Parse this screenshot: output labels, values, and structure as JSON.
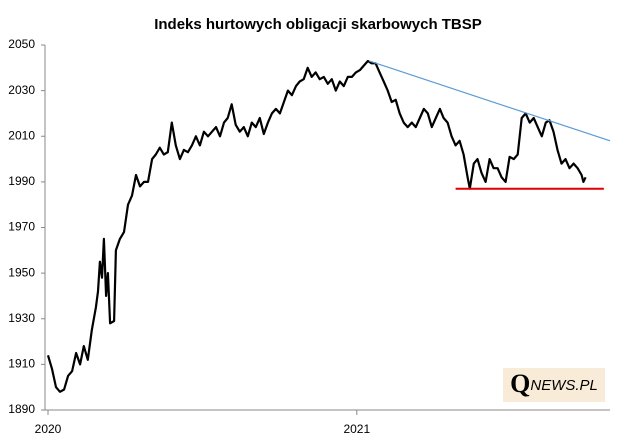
{
  "chart_data": {
    "type": "line",
    "title": "Indeks hurtowych obligacji skarbowych TBSP",
    "xlim": [
      2020,
      2021.82
    ],
    "xticks": [
      2020,
      2021
    ],
    "ylim": [
      1890,
      2050
    ],
    "yticks": [
      1890,
      1910,
      1930,
      1950,
      1970,
      1990,
      2010,
      2030,
      2050
    ],
    "series": [
      {
        "color": "#000000",
        "x": [
          2020.0,
          2020.013,
          2020.026,
          2020.039,
          2020.052,
          2020.065,
          2020.078,
          2020.091,
          2020.104,
          2020.116,
          2020.129,
          2020.142,
          2020.155,
          2020.162,
          2020.168,
          2020.175,
          2020.181,
          2020.188,
          2020.194,
          2020.201,
          2020.214,
          2020.22,
          2020.233,
          2020.246,
          2020.259,
          2020.272,
          2020.285,
          2020.298,
          2020.311,
          2020.324,
          2020.337,
          2020.349,
          2020.362,
          2020.375,
          2020.388,
          2020.401,
          2020.414,
          2020.427,
          2020.44,
          2020.453,
          2020.466,
          2020.479,
          2020.492,
          2020.505,
          2020.518,
          2020.531,
          2020.544,
          2020.557,
          2020.57,
          2020.582,
          2020.595,
          2020.608,
          2020.621,
          2020.634,
          2020.647,
          2020.66,
          2020.673,
          2020.686,
          2020.699,
          2020.712,
          2020.725,
          2020.738,
          2020.751,
          2020.764,
          2020.777,
          2020.79,
          2020.803,
          2020.815,
          2020.828,
          2020.841,
          2020.854,
          2020.867,
          2020.88,
          2020.893,
          2020.906,
          2020.919,
          2020.932,
          2020.945,
          2020.958,
          2020.971,
          2020.984,
          2020.997,
          2021.01,
          2021.023,
          2021.036,
          2021.048,
          2021.061,
          2021.074,
          2021.087,
          2021.1,
          2021.113,
          2021.126,
          2021.139,
          2021.152,
          2021.165,
          2021.178,
          2021.191,
          2021.204,
          2021.217,
          2021.23,
          2021.243,
          2021.256,
          2021.269,
          2021.281,
          2021.294,
          2021.307,
          2021.32,
          2021.333,
          2021.346,
          2021.359,
          2021.366,
          2021.379,
          2021.391,
          2021.404,
          2021.417,
          2021.43,
          2021.443,
          2021.456,
          2021.469,
          2021.482,
          2021.495,
          2021.508,
          2021.521,
          2021.534,
          2021.547,
          2021.56,
          2021.573,
          2021.586,
          2021.599,
          2021.612,
          2021.624,
          2021.637,
          2021.65,
          2021.663,
          2021.676,
          2021.689,
          2021.702,
          2021.715,
          2021.728,
          2021.734,
          2021.741
        ],
        "values": [
          1914,
          1908,
          1900,
          1898,
          1899,
          1905,
          1907,
          1915,
          1910,
          1918,
          1912,
          1925,
          1935,
          1942,
          1955,
          1948,
          1965,
          1940,
          1950,
          1928,
          1929,
          1960,
          1965,
          1968,
          1980,
          1984,
          1993,
          1988,
          1990,
          1990,
          2000,
          2002,
          2005,
          2002,
          2003,
          2016,
          2006,
          2000,
          2004,
          2003,
          2006,
          2010,
          2006,
          2012,
          2010,
          2012,
          2014,
          2010,
          2016,
          2018,
          2024,
          2015,
          2012,
          2014,
          2010,
          2016,
          2014,
          2018,
          2011,
          2016,
          2020,
          2022,
          2020,
          2025,
          2030,
          2028,
          2032,
          2034,
          2035,
          2040,
          2036,
          2038,
          2035,
          2036,
          2033,
          2035,
          2030,
          2034,
          2032,
          2036,
          2036,
          2038,
          2039,
          2041,
          2043,
          2042,
          2042,
          2038,
          2034,
          2030,
          2025,
          2026,
          2020,
          2016,
          2014,
          2016,
          2014,
          2018,
          2022,
          2020,
          2014,
          2018,
          2022,
          2018,
          2016,
          2010,
          2006,
          2008,
          2002,
          1992,
          1987,
          1998,
          2000,
          1994,
          1990,
          2000,
          1996,
          1996,
          1992,
          1990,
          2001,
          2000,
          2002,
          2018,
          2020,
          2016,
          2018,
          2014,
          2010,
          2016,
          2017,
          2012,
          2004,
          1998,
          2000,
          1996,
          1998,
          1996,
          1993,
          1990,
          1992
        ]
      }
    ],
    "trend_lines": [
      {
        "color": "#5b9bd5",
        "x": [
          2021.04,
          2021.82
        ],
        "y": [
          2043,
          2008
        ]
      },
      {
        "color": "#e00000",
        "x": [
          2021.32,
          2021.8
        ],
        "y": [
          1987,
          1987
        ]
      }
    ],
    "watermark": {
      "initial": "Q",
      "rest": "NEWS.PL"
    }
  }
}
